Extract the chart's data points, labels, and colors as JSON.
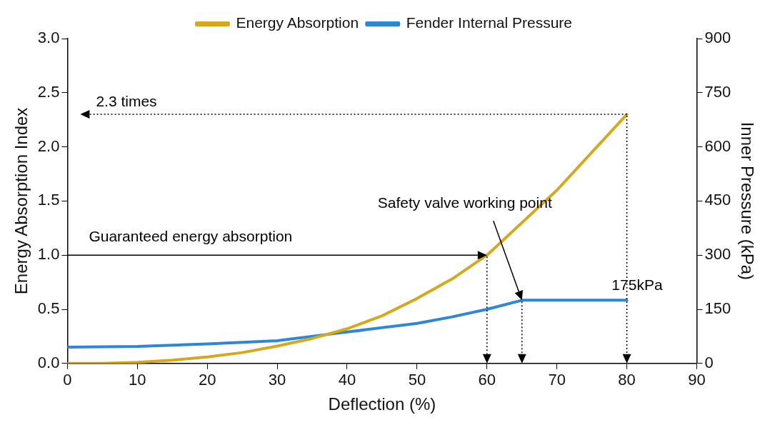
{
  "chart_data": {
    "type": "line",
    "xlabel": "Deflection (%)",
    "ylabel": "Energy Absorption Index",
    "y2label": "Inner Pressure (kPa)",
    "xlim": [
      0,
      90
    ],
    "xticks": [
      0,
      10,
      20,
      30,
      40,
      50,
      60,
      70,
      80,
      90
    ],
    "ylim": [
      0,
      3
    ],
    "yticks": [
      {
        "value": 0,
        "label": "0.0"
      },
      0.5,
      {
        "value": 1,
        "label": "1.0"
      },
      1.5,
      {
        "value": 2,
        "label": "2.0"
      },
      2.5,
      {
        "value": 3,
        "label": "3.0"
      }
    ],
    "y2lim": [
      0,
      900
    ],
    "y2ticks": [
      0,
      150,
      300,
      450,
      600,
      750,
      900
    ],
    "ref_lines": [
      {
        "axis": "y",
        "value": 1.0,
        "label": "Guaranteed energy absorption",
        "color": "#000000",
        "line_style": "solid"
      }
    ],
    "legend": "top",
    "marker": "none",
    "line_style": "solid",
    "series": [
      {
        "name": "Energy Absorption",
        "color": "#d4a91c",
        "x": [
          0,
          5,
          10,
          15,
          20,
          25,
          30,
          35,
          40,
          45,
          50,
          55,
          60,
          65,
          70,
          75,
          80
        ],
        "values": [
          0,
          0,
          0.01,
          0.03,
          0.06,
          0.1,
          0.16,
          0.23,
          0.32,
          0.44,
          0.6,
          0.78,
          1.0,
          1.3,
          1.6,
          1.95,
          2.3
        ]
      },
      {
        "name": "Fender Internal Pressure",
        "color": "#2f86d6",
        "axis": "y2",
        "x": [
          0,
          10,
          20,
          30,
          37,
          40,
          50,
          55,
          60,
          65,
          70,
          75,
          80
        ],
        "values": [
          45,
          47,
          54,
          63,
          80,
          87,
          111,
          129,
          150,
          175,
          175,
          175,
          175
        ]
      }
    ],
    "annotations": [
      {
        "text": "2.3 times",
        "x": 80,
        "y": 2.3
      },
      "Safety valve working point",
      "175kPa"
    ]
  }
}
